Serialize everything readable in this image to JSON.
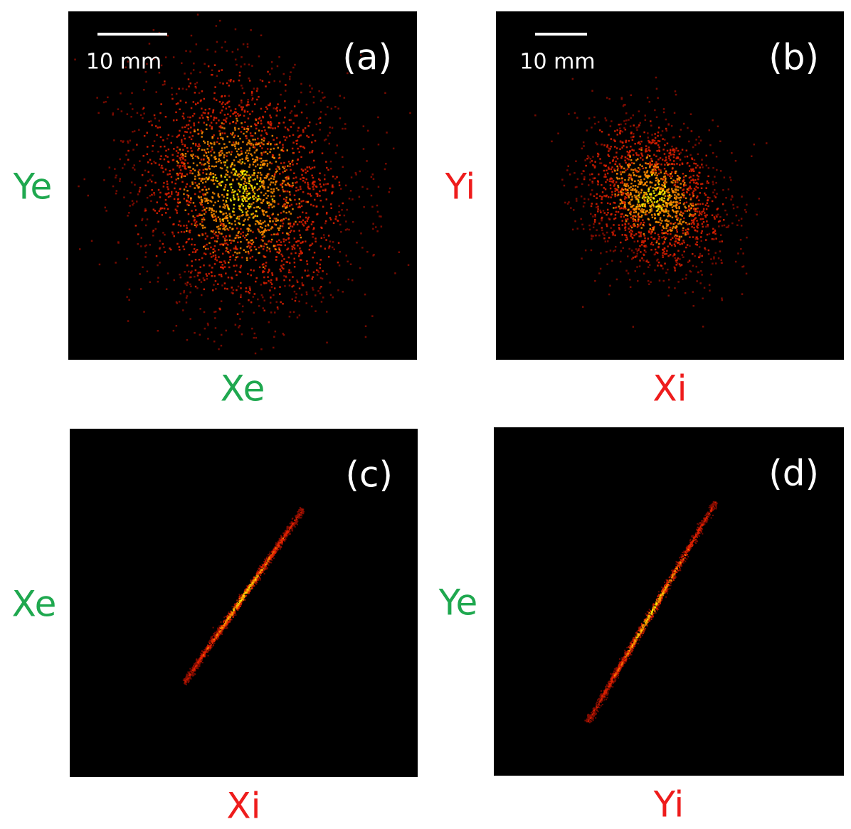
{
  "panels": [
    {
      "label": "(a)",
      "scale_bar": "10 mm",
      "x_label": {
        "text": "Xe",
        "color": "#1fa84f"
      },
      "y_label": {
        "text": "Ye",
        "color": "#1fa84f"
      }
    },
    {
      "label": "(b)",
      "scale_bar": "10 mm",
      "x_label": {
        "text": "Xi",
        "color": "#ee1c1c"
      },
      "y_label": {
        "text": "Yi",
        "color": "#ee1c1c"
      }
    },
    {
      "label": "(c)",
      "x_label": {
        "text": "Xi",
        "color": "#ee1c1c"
      },
      "y_label": {
        "text": "Xe",
        "color": "#1fa84f"
      }
    },
    {
      "label": "(d)",
      "x_label": {
        "text": "Yi",
        "color": "#ee1c1c"
      },
      "y_label": {
        "text": "Ye",
        "color": "#1fa84f"
      }
    }
  ]
}
